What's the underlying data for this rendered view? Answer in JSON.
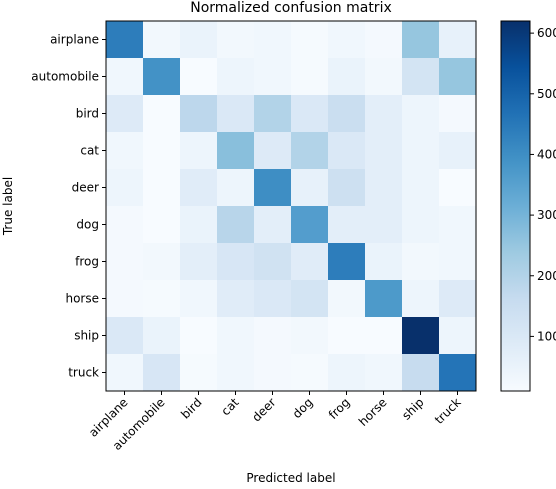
{
  "chart_data": {
    "type": "heatmap",
    "title": "Normalized confusion matrix",
    "xlabel": "Predicted label",
    "ylabel": "True label",
    "x_categories": [
      "airplane",
      "automobile",
      "bird",
      "cat",
      "deer",
      "dog",
      "frog",
      "horse",
      "ship",
      "truck"
    ],
    "y_categories": [
      "airplane",
      "automobile",
      "bird",
      "cat",
      "deer",
      "dog",
      "frog",
      "horse",
      "ship",
      "truck"
    ],
    "values": [
      [
        440,
        25,
        50,
        25,
        30,
        15,
        30,
        20,
        250,
        60
      ],
      [
        30,
        390,
        10,
        40,
        30,
        15,
        50,
        25,
        120,
        250
      ],
      [
        90,
        10,
        180,
        100,
        200,
        100,
        150,
        70,
        40,
        20
      ],
      [
        30,
        10,
        40,
        270,
        90,
        200,
        100,
        70,
        40,
        60
      ],
      [
        40,
        10,
        80,
        40,
        400,
        60,
        140,
        70,
        40,
        10
      ],
      [
        20,
        10,
        50,
        190,
        70,
        360,
        70,
        70,
        40,
        30
      ],
      [
        20,
        25,
        70,
        110,
        130,
        80,
        440,
        50,
        25,
        30
      ],
      [
        20,
        15,
        30,
        80,
        100,
        120,
        25,
        370,
        40,
        90
      ],
      [
        100,
        50,
        10,
        30,
        20,
        25,
        10,
        10,
        620,
        40
      ],
      [
        30,
        110,
        15,
        30,
        20,
        15,
        40,
        30,
        160,
        460
      ]
    ],
    "vmin": 10,
    "vmax": 620,
    "colormap": "Blues",
    "colorbar_ticks": [
      100,
      200,
      300,
      400,
      500,
      600
    ],
    "grid": false
  }
}
